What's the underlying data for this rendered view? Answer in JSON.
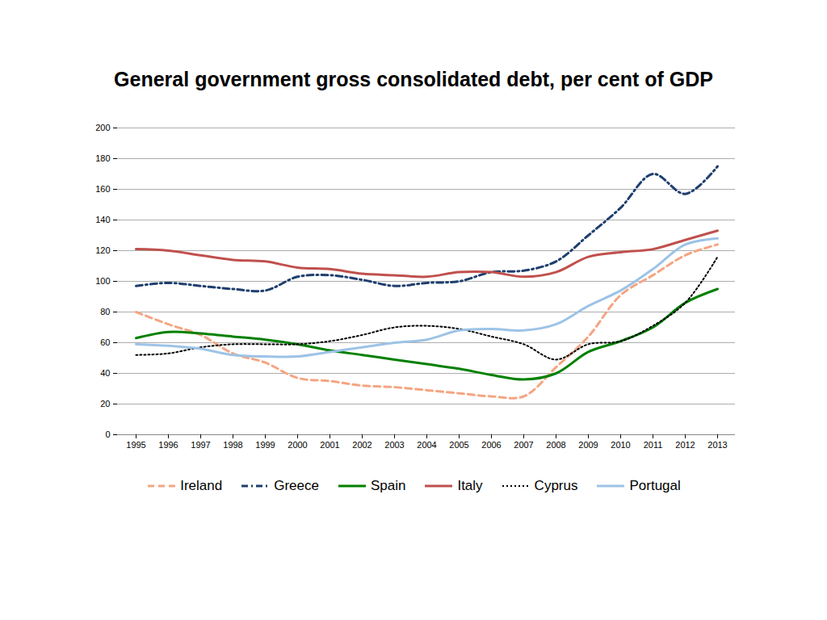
{
  "chart_data": {
    "type": "line",
    "title": "General government gross consolidated debt, per cent of GDP",
    "categories": [
      "1995",
      "1996",
      "1997",
      "1998",
      "1999",
      "2000",
      "2001",
      "2002",
      "2003",
      "2004",
      "2005",
      "2006",
      "2007",
      "2008",
      "2009",
      "2010",
      "2011",
      "2012",
      "2013"
    ],
    "series": [
      {
        "name": "Ireland",
        "color": "#f4a582",
        "line_style": "dashed",
        "values": [
          80,
          72,
          65,
          53,
          47,
          37,
          35,
          32,
          31,
          29,
          27,
          25,
          25,
          44,
          64,
          91,
          104,
          117,
          124
        ]
      },
      {
        "name": "Greece",
        "color": "#1f3f6e",
        "line_style": "dashdot",
        "values": [
          97,
          99,
          97,
          95,
          94,
          103,
          104,
          101,
          97,
          99,
          100,
          106,
          107,
          113,
          130,
          148,
          170,
          157,
          175
        ]
      },
      {
        "name": "Spain",
        "color": "#008000",
        "line_style": "solid",
        "values": [
          63,
          67,
          66,
          64,
          62,
          59,
          55,
          52,
          49,
          46,
          43,
          39,
          36,
          40,
          54,
          61,
          70,
          86,
          95
        ]
      },
      {
        "name": "Italy",
        "color": "#c0504d",
        "line_style": "solid",
        "values": [
          121,
          120,
          117,
          114,
          113,
          109,
          108,
          105,
          104,
          103,
          106,
          106,
          103,
          106,
          116,
          119,
          121,
          127,
          133
        ]
      },
      {
        "name": "Cyprus",
        "color": "#000000",
        "line_style": "dotted",
        "values": [
          52,
          53,
          57,
          59,
          59,
          59,
          61,
          65,
          70,
          71,
          69,
          64,
          59,
          49,
          59,
          61,
          71,
          86,
          116
        ]
      },
      {
        "name": "Portugal",
        "color": "#9dc3e6",
        "line_style": "solid",
        "values": [
          59,
          58,
          56,
          52,
          51,
          51,
          54,
          57,
          60,
          62,
          68,
          69,
          68,
          72,
          84,
          94,
          108,
          124,
          128
        ]
      }
    ],
    "ylim": [
      0,
      200
    ],
    "yticks": [
      0,
      20,
      40,
      60,
      80,
      100,
      120,
      140,
      160,
      180,
      200
    ],
    "grid": true,
    "legend": "bottom"
  }
}
